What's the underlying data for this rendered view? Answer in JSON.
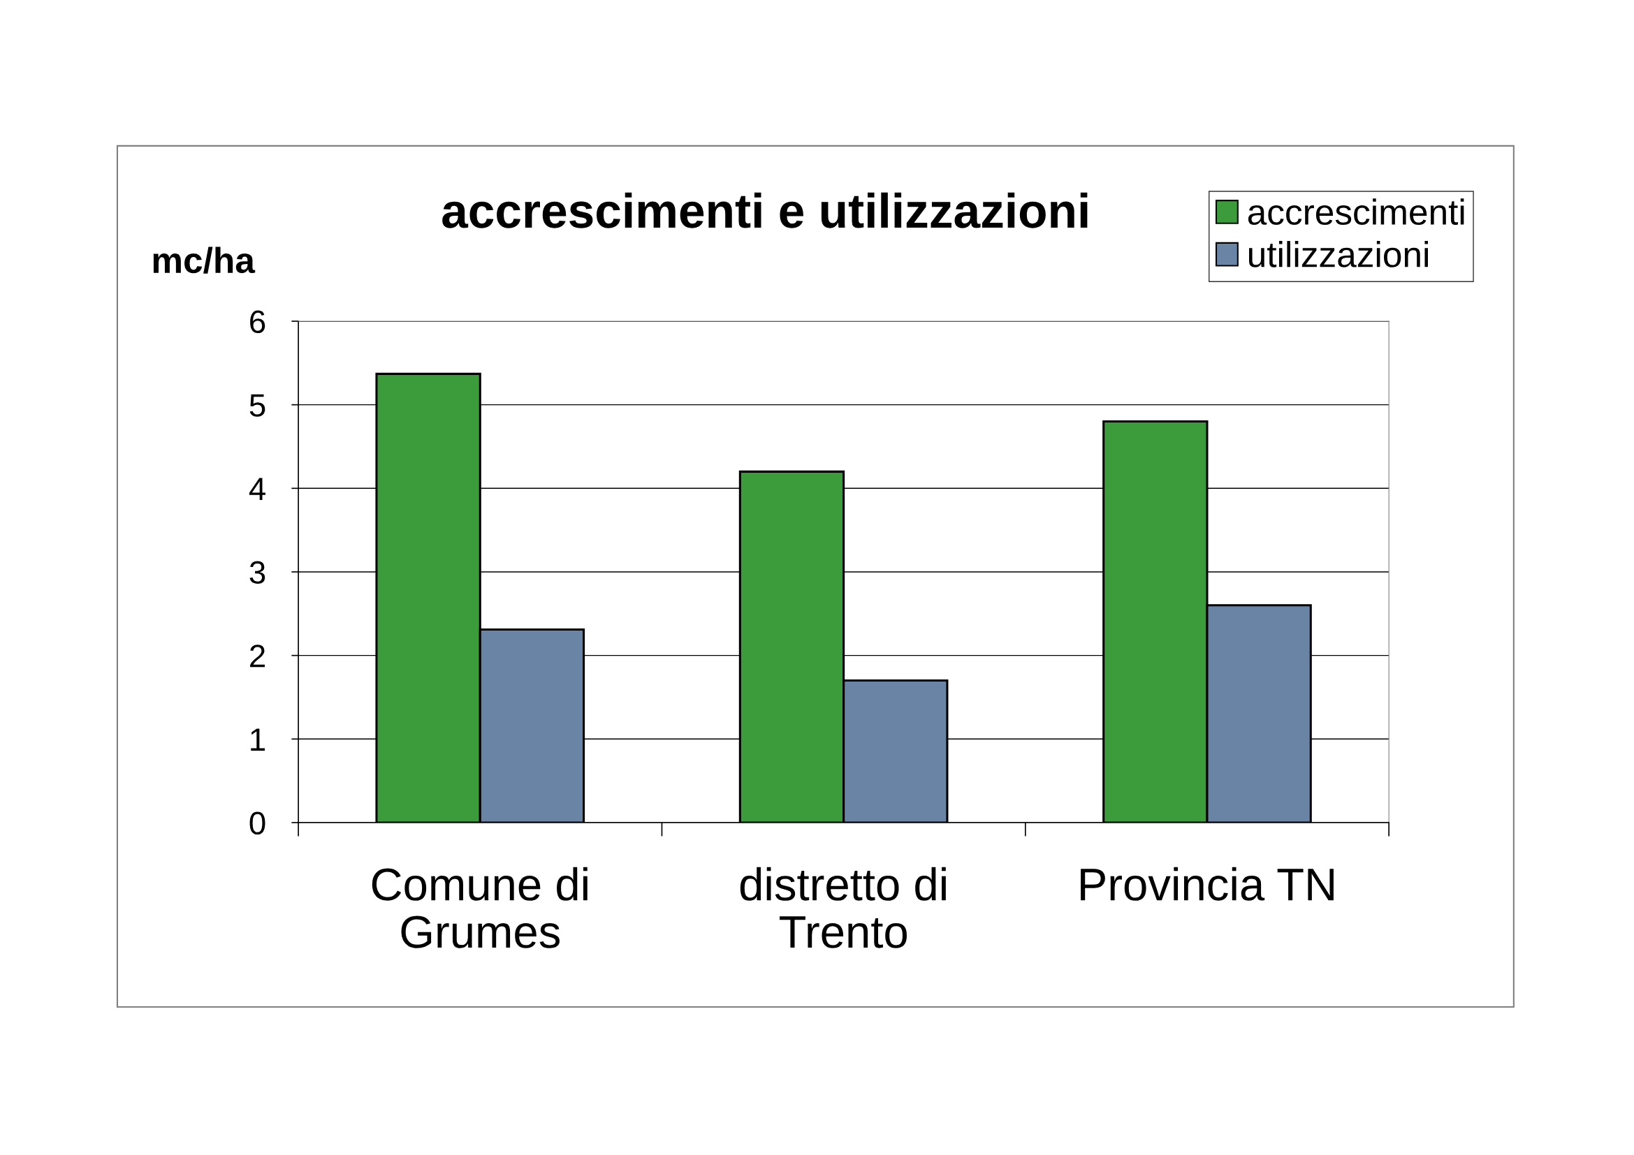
{
  "chart_data": {
    "type": "bar",
    "title": "accrescimenti e utilizzazioni",
    "ylabel": "mc/ha",
    "categories": [
      "Comune di\nGrumes",
      "distretto di\nTrento",
      "Provincia TN"
    ],
    "series": [
      {
        "name": "accrescimenti",
        "color": "#3c9c3c",
        "values": [
          5.37,
          4.2,
          4.8
        ]
      },
      {
        "name": "utilizzazioni",
        "color": "#6a84a6",
        "values": [
          2.31,
          1.7,
          2.6
        ]
      }
    ],
    "ylim": [
      0,
      6
    ],
    "yticks": [
      0,
      1,
      2,
      3,
      4,
      5,
      6
    ],
    "grid": "y",
    "legend": "top right"
  }
}
